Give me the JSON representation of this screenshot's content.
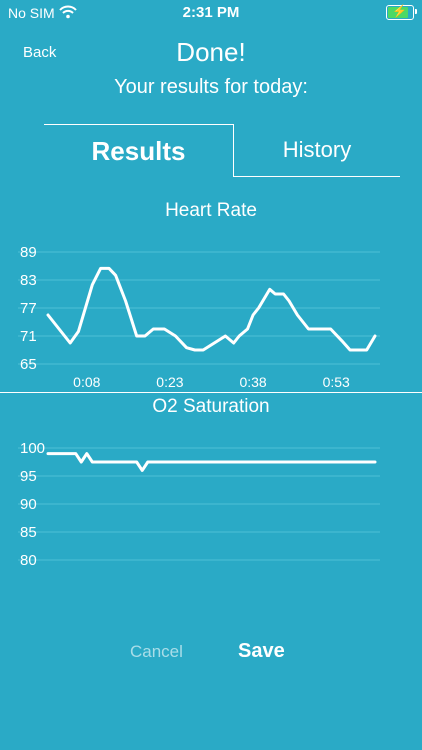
{
  "status_bar": {
    "carrier": "No SIM",
    "time": "2:31 PM",
    "wifi_icon": "wifi-icon",
    "battery_icon": "battery-charging-icon",
    "battery_color": "#4cd964"
  },
  "header": {
    "back_label": "Back",
    "title": "Done!",
    "subtitle": "Your results for today:"
  },
  "tabs": [
    {
      "label": "Results",
      "selected": true
    },
    {
      "label": "History",
      "selected": false
    }
  ],
  "colors": {
    "background": "#2aaac6",
    "foreground": "#ffffff",
    "gridline": "#4ec0d6",
    "cancel_text": "#a9dde8"
  },
  "chart_data": [
    {
      "type": "line",
      "title": "Heart Rate",
      "yticks": [
        89,
        83,
        77,
        71,
        65
      ],
      "ylim": [
        65,
        89
      ],
      "xticks": [
        "0:08",
        "0:23",
        "0:38",
        "0:53"
      ],
      "xtick_values": [
        8,
        23,
        38,
        53
      ],
      "xlim": [
        1,
        60
      ],
      "grid": true,
      "series": [
        {
          "x": [
            1,
            5,
            6.5,
            9,
            10.5,
            12,
            13.2,
            15,
            17,
            18.5,
            20,
            22,
            24,
            26,
            27.5,
            29,
            31,
            33,
            34.5,
            35.5,
            37,
            38,
            39,
            41,
            42,
            43.5,
            44.5,
            46,
            47,
            48,
            49,
            50.5,
            52,
            54,
            55.5,
            57,
            58.5,
            60
          ],
          "values": [
            75.5,
            69.5,
            72,
            82,
            85.5,
            85.5,
            84,
            78.5,
            71,
            71,
            72.5,
            72.5,
            71,
            68.5,
            68,
            68,
            69.5,
            71,
            69.5,
            71,
            72.5,
            75.5,
            77,
            81,
            80,
            80,
            78.5,
            75.5,
            74,
            72.5,
            72.5,
            72.5,
            72.5,
            70,
            68,
            68,
            68,
            71
          ]
        }
      ]
    },
    {
      "type": "line",
      "title": "O2 Saturation",
      "yticks": [
        100,
        95,
        90,
        85,
        80
      ],
      "ylim": [
        80,
        100
      ],
      "xlim": [
        1,
        60
      ],
      "grid": true,
      "series": [
        {
          "x": [
            1,
            5,
            6,
            7,
            8,
            9,
            10,
            17,
            18,
            19,
            27,
            60
          ],
          "values": [
            99,
            99,
            99,
            97.5,
            99,
            97.5,
            97.5,
            97.5,
            96,
            97.5,
            97.5,
            97.5
          ]
        }
      ]
    }
  ],
  "footer": {
    "cancel_label": "Cancel",
    "save_label": "Save"
  }
}
